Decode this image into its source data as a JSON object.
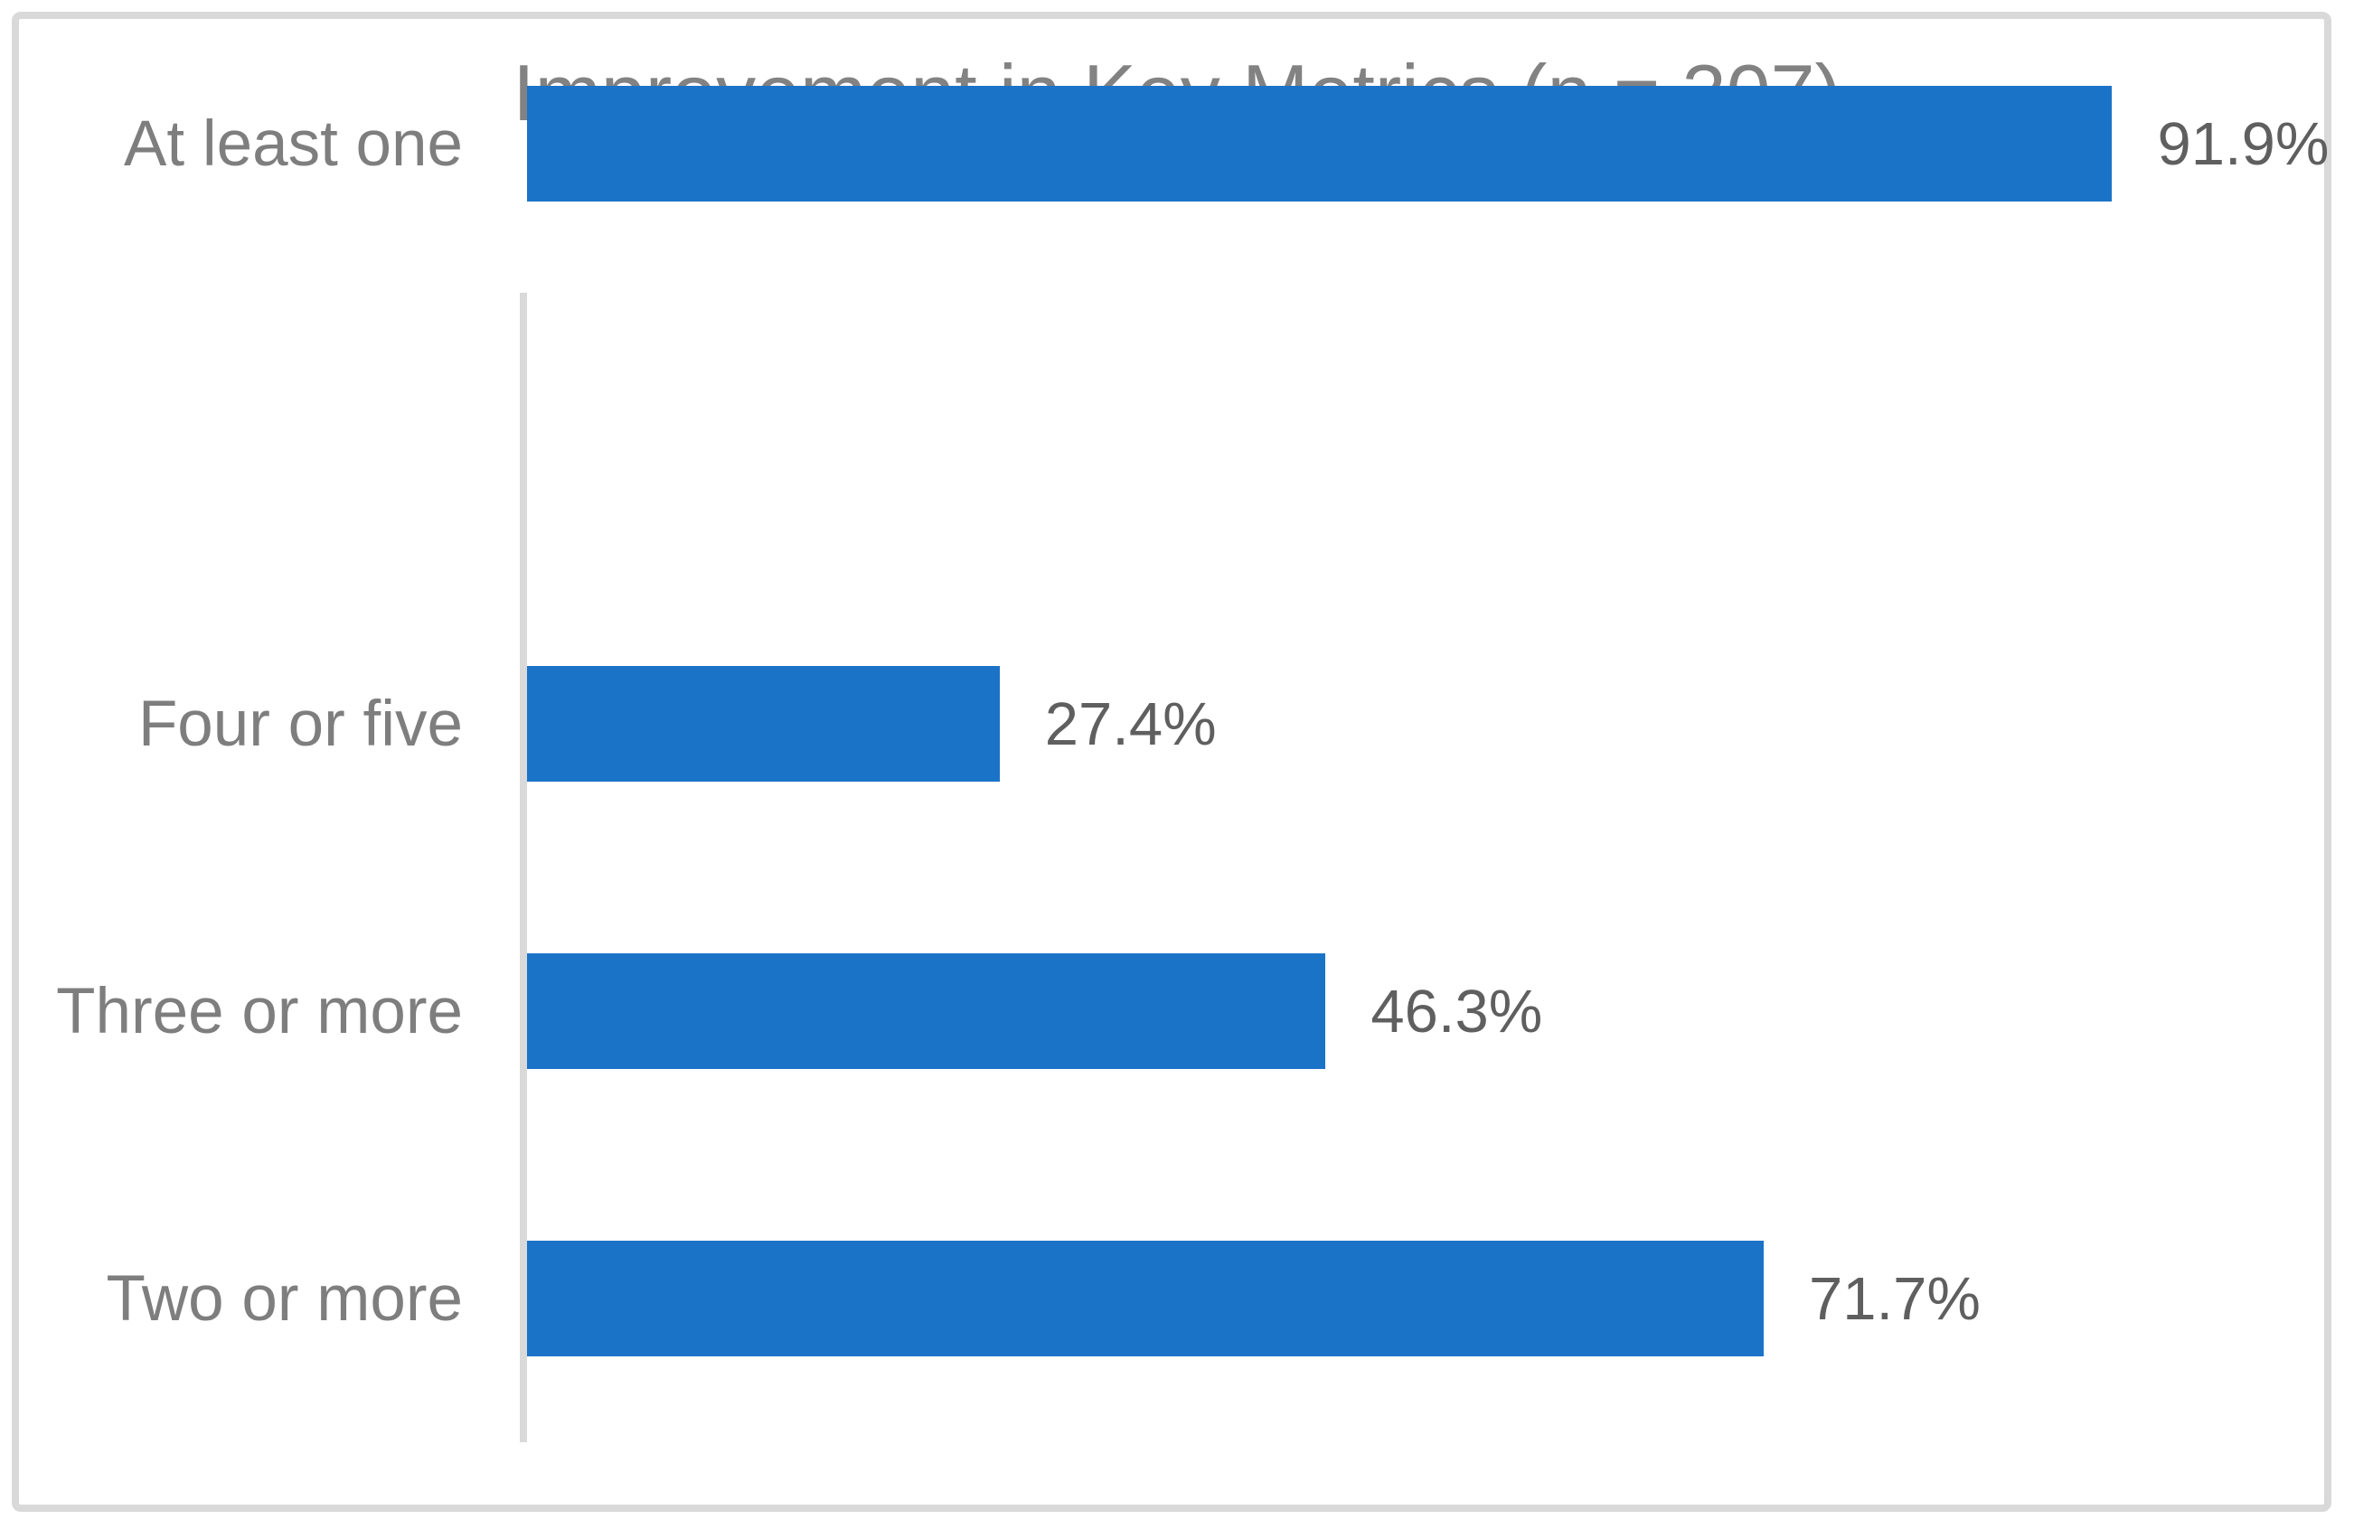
{
  "chart_data": {
    "type": "bar",
    "orientation": "horizontal",
    "title": "Improvement in Key Metrics (n = 307)",
    "categories": [
      "Four or five",
      "Three or more",
      "Two or more",
      "At least one"
    ],
    "values": [
      27.4,
      46.3,
      71.7,
      91.9
    ],
    "data_labels": [
      "27.4%",
      "46.3%",
      "71.7%",
      "91.9%"
    ],
    "xlim": [
      0,
      100
    ],
    "grid": false,
    "legend": "none",
    "axis_labels_shown": false,
    "colors": {
      "bar": "#1b73c8",
      "axis_line": "#d9d9d9",
      "outer_border": "#d9d9d9",
      "title_text": "#828282",
      "category_text": "#7e7e7e",
      "value_text": "#5f5f5f",
      "background": "#ffffff"
    }
  }
}
